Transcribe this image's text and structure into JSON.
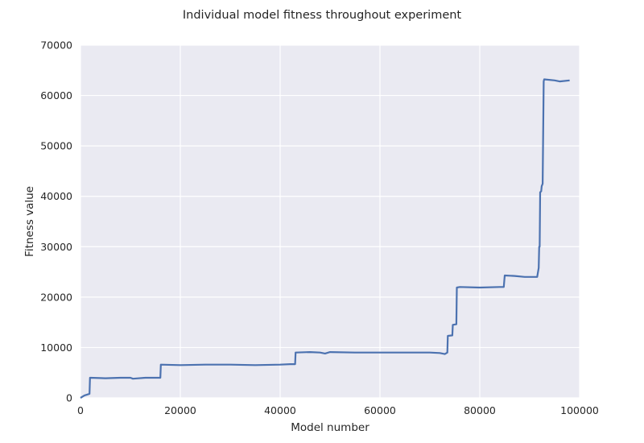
{
  "chart_data": {
    "type": "line",
    "title": "Individual model fitness throughout experiment",
    "xlabel": "Model number",
    "ylabel": "Fitness value",
    "xlim": [
      0,
      100000
    ],
    "ylim": [
      0,
      70000
    ],
    "xticks": [
      0,
      20000,
      40000,
      60000,
      80000,
      100000
    ],
    "yticks": [
      0,
      10000,
      20000,
      30000,
      40000,
      50000,
      60000,
      70000
    ],
    "xtick_labels": [
      "0",
      "20000",
      "40000",
      "60000",
      "80000",
      "100000"
    ],
    "ytick_labels": [
      "0",
      "10000",
      "20000",
      "30000",
      "40000",
      "50000",
      "60000",
      "70000"
    ],
    "grid": true,
    "series": [
      {
        "color": "#4c72b0",
        "x": [
          0,
          500,
          800,
          1200,
          1500,
          1800,
          1900,
          2000,
          5000,
          8000,
          10000,
          10500,
          13000,
          16000,
          16100,
          20000,
          25000,
          30000,
          35000,
          40000,
          42000,
          43000,
          43100,
          46000,
          48000,
          49000,
          50000,
          55000,
          60000,
          65000,
          70000,
          72000,
          73000,
          73500,
          73600,
          74500,
          74600,
          75300,
          75400,
          76000,
          80000,
          84000,
          84800,
          85000,
          87000,
          89000,
          91500,
          91800,
          91900,
          92000,
          92100,
          92300,
          92400,
          92600,
          92800,
          92850,
          92900,
          95000,
          96000,
          98000
        ],
        "y": [
          0,
          300,
          500,
          600,
          700,
          800,
          4000,
          4000,
          3900,
          4000,
          4000,
          3800,
          4000,
          4000,
          6600,
          6500,
          6600,
          6600,
          6500,
          6600,
          6700,
          6700,
          9000,
          9100,
          9000,
          8800,
          9100,
          9000,
          9000,
          9000,
          9000,
          8900,
          8700,
          9000,
          12300,
          12400,
          14500,
          14600,
          21900,
          22000,
          21900,
          22000,
          22000,
          24300,
          24200,
          24000,
          24000,
          25800,
          30000,
          30000,
          40800,
          41000,
          42000,
          42500,
          62800,
          63000,
          63200,
          63000,
          62800,
          63000
        ]
      }
    ]
  }
}
